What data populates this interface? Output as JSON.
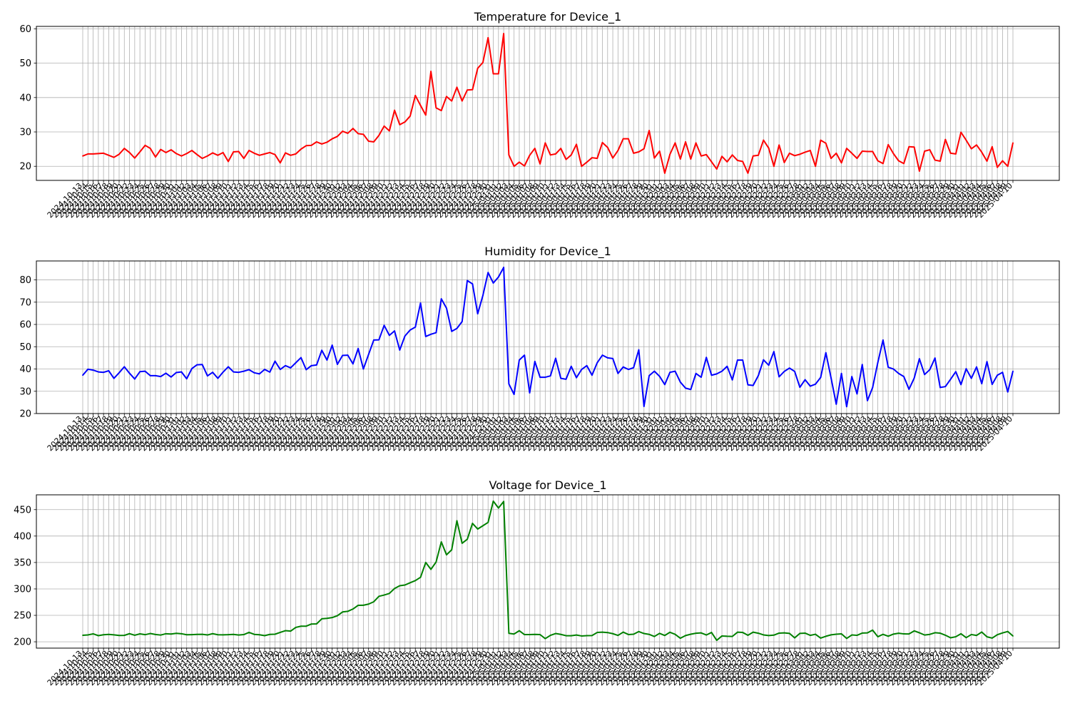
{
  "chart_data": [
    {
      "type": "line",
      "title": "Temperature for Device_1",
      "xlabel": "",
      "ylabel": "",
      "ylim": [
        15.9,
        60.7
      ],
      "yticks": [
        20,
        30,
        40,
        50,
        60
      ],
      "grid": true,
      "color": "#ff0000",
      "x_start": "2024-10-13",
      "x_end": "2025-04-10",
      "x": [
        "2024-10-13",
        "2024-10-14",
        "2024-10-15",
        "2024-10-16",
        "2024-10-17",
        "2024-10-18",
        "2024-10-19",
        "2024-10-20",
        "2024-10-21",
        "2024-10-22",
        "2024-10-23",
        "2024-10-24",
        "2024-10-25",
        "2024-10-26",
        "2024-10-27",
        "2024-10-28",
        "2024-10-29",
        "2024-10-30",
        "2024-10-31",
        "2024-11-01",
        "2024-11-02",
        "2024-11-03",
        "2024-11-04",
        "2024-11-05",
        "2024-11-06",
        "2024-11-07",
        "2024-11-08",
        "2024-11-09",
        "2024-11-10",
        "2024-11-11",
        "2024-11-12",
        "2024-11-13",
        "2024-11-14",
        "2024-11-15",
        "2024-11-16",
        "2024-11-17",
        "2024-11-18",
        "2024-11-19",
        "2024-11-20",
        "2024-11-21",
        "2024-11-22",
        "2024-11-23",
        "2024-11-24",
        "2024-11-25",
        "2024-11-26",
        "2024-11-27",
        "2024-11-28",
        "2024-11-29",
        "2024-11-30",
        "2024-12-01",
        "2024-12-02",
        "2024-12-03",
        "2024-12-04",
        "2024-12-05",
        "2024-12-06",
        "2024-12-07",
        "2024-12-08",
        "2024-12-09",
        "2024-12-10",
        "2024-12-11",
        "2024-12-12",
        "2024-12-13",
        "2024-12-14",
        "2024-12-15",
        "2024-12-16",
        "2024-12-17",
        "2024-12-18",
        "2024-12-19",
        "2024-12-20",
        "2024-12-21",
        "2024-12-22",
        "2024-12-23",
        "2024-12-24",
        "2024-12-25",
        "2024-12-26",
        "2024-12-27",
        "2024-12-28",
        "2024-12-29",
        "2024-12-30",
        "2024-12-31",
        "2025-01-01",
        "2025-01-02",
        "2025-01-03",
        "2025-01-04",
        "2025-01-05",
        "2025-01-06",
        "2025-01-07",
        "2025-01-08",
        "2025-01-09",
        "2025-01-10",
        "2025-01-11",
        "2025-01-12",
        "2025-01-13",
        "2025-01-14",
        "2025-01-15",
        "2025-01-16",
        "2025-01-17",
        "2025-01-18",
        "2025-01-19",
        "2025-01-20",
        "2025-01-21",
        "2025-01-22",
        "2025-01-23",
        "2025-01-24",
        "2025-01-25",
        "2025-01-26",
        "2025-01-27",
        "2025-01-28",
        "2025-01-29",
        "2025-01-30",
        "2025-01-31",
        "2025-02-01",
        "2025-02-02",
        "2025-02-03",
        "2025-02-04",
        "2025-02-05",
        "2025-02-06",
        "2025-02-07",
        "2025-02-08",
        "2025-02-09",
        "2025-02-10",
        "2025-02-11",
        "2025-02-12",
        "2025-02-13",
        "2025-02-14",
        "2025-02-15",
        "2025-02-16",
        "2025-02-17",
        "2025-02-18",
        "2025-02-19",
        "2025-02-20",
        "2025-02-21",
        "2025-02-22",
        "2025-02-23",
        "2025-02-24",
        "2025-02-25",
        "2025-02-26",
        "2025-02-27",
        "2025-02-28",
        "2025-03-01",
        "2025-03-02",
        "2025-03-03",
        "2025-03-04",
        "2025-03-05",
        "2025-03-06",
        "2025-03-07",
        "2025-03-08",
        "2025-03-09",
        "2025-03-10",
        "2025-03-11",
        "2025-03-12",
        "2025-03-13",
        "2025-03-14",
        "2025-03-15",
        "2025-03-16",
        "2025-03-17",
        "2025-03-18",
        "2025-03-19",
        "2025-03-20",
        "2025-03-21",
        "2025-03-22",
        "2025-03-23",
        "2025-03-24",
        "2025-03-25",
        "2025-03-26",
        "2025-03-27",
        "2025-03-28",
        "2025-03-29",
        "2025-03-30",
        "2025-03-31",
        "2025-04-01",
        "2025-04-02",
        "2025-04-03",
        "2025-04-04",
        "2025-04-05",
        "2025-04-06",
        "2025-04-07",
        "2025-04-08",
        "2025-04-09",
        "2025-04-10"
      ],
      "values": [
        23.0,
        23.6,
        23.6,
        23.7,
        23.8,
        23.2,
        22.6,
        23.5,
        25.2,
        24.0,
        22.4,
        24.2,
        26.1,
        25.2,
        22.7,
        24.9,
        24.0,
        24.8,
        23.7,
        23.0,
        23.7,
        24.6,
        23.4,
        22.3,
        23.0,
        23.9,
        23.2,
        24.0,
        21.4,
        24.2,
        24.3,
        22.3,
        24.6,
        23.8,
        23.2,
        23.6,
        24.0,
        23.4,
        21.0,
        23.9,
        23.2,
        23.6,
        25.0,
        26.0,
        26.1,
        27.1,
        26.5,
        27.0,
        28.0,
        28.7,
        30.2,
        29.6,
        31.0,
        29.5,
        29.3,
        27.3,
        27.1,
        29.0,
        31.7,
        30.3,
        36.3,
        32.1,
        32.9,
        34.6,
        40.6,
        37.7,
        34.9,
        47.6,
        37.0,
        36.2,
        40.3,
        39.0,
        43.0,
        39.0,
        42.2,
        42.3,
        48.5,
        50.2,
        57.4,
        46.9,
        46.9,
        58.6,
        23.3,
        20.0,
        21.2,
        20.1,
        23.2,
        25.2,
        20.7,
        26.8,
        23.3,
        23.6,
        25.2,
        22.0,
        23.3,
        26.4,
        20.0,
        21.2,
        22.5,
        22.3,
        26.9,
        25.5,
        22.4,
        24.6,
        28.0,
        28.0,
        23.8,
        24.2,
        25.1,
        30.4,
        22.4,
        24.4,
        18.0,
        23.5,
        26.8,
        22.1,
        27.1,
        22.1,
        26.8,
        23.0,
        23.4,
        21.3,
        19.2,
        22.9,
        21.3,
        23.3,
        21.7,
        21.4,
        18.0,
        23.0,
        23.2,
        27.6,
        25.3,
        20.0,
        26.2,
        21.1,
        23.8,
        23.1,
        23.5,
        24.1,
        24.6,
        20.0,
        27.6,
        26.7,
        22.3,
        23.8,
        21.0,
        25.2,
        23.8,
        22.3,
        24.4,
        24.3,
        24.3,
        21.6,
        20.8,
        26.3,
        23.7,
        21.6,
        20.8,
        25.7,
        25.6,
        18.6,
        24.4,
        24.8,
        21.8,
        21.5,
        27.8,
        23.8,
        23.6,
        29.9,
        27.6,
        25.1,
        26.2,
        24.1,
        21.5,
        25.7,
        19.7,
        21.6,
        20.0,
        26.8
      ]
    },
    {
      "type": "line",
      "title": "Humidity for Device_1",
      "xlabel": "",
      "ylabel": "",
      "ylim": [
        20,
        88.5
      ],
      "yticks": [
        20,
        30,
        40,
        50,
        60,
        70,
        80
      ],
      "grid": true,
      "color": "#0000ff",
      "x_start": "2024-10-13",
      "x_end": "2025-04-10",
      "values": [
        37.2,
        39.9,
        39.5,
        38.7,
        38.5,
        39.2,
        35.8,
        38.3,
        41.0,
        38.1,
        35.5,
        38.8,
        39.0,
        37.0,
        37.0,
        36.6,
        38.1,
        36.4,
        38.4,
        38.7,
        35.6,
        40.2,
        41.9,
        42.0,
        36.9,
        38.5,
        35.8,
        38.6,
        41.0,
        38.7,
        38.5,
        39.0,
        39.7,
        38.3,
        37.8,
        39.8,
        38.6,
        43.5,
        39.8,
        41.5,
        40.5,
        42.8,
        45.1,
        39.7,
        41.5,
        41.8,
        48.4,
        44.0,
        50.7,
        42.1,
        46.1,
        46.2,
        42.3,
        49.2,
        40.0,
        46.5,
        53.0,
        53.1,
        59.6,
        55.1,
        57.1,
        48.5,
        54.8,
        57.5,
        58.8,
        69.6,
        54.6,
        55.6,
        56.3,
        71.5,
        67.3,
        56.9,
        58.2,
        61.3,
        79.7,
        78.2,
        64.8,
        73.0,
        83.3,
        78.6,
        81.3,
        85.6,
        33.3,
        28.6,
        44.0,
        46.2,
        29.3,
        43.4,
        36.3,
        36.3,
        36.9,
        44.8,
        35.8,
        35.4,
        41.2,
        36.1,
        39.8,
        41.5,
        37.2,
        42.8,
        46.2,
        45.0,
        44.7,
        38.0,
        40.9,
        39.8,
        40.6,
        48.6,
        23.2,
        37.0,
        39.0,
        36.7,
        33.0,
        38.5,
        39.0,
        34.1,
        31.4,
        30.8,
        38.0,
        36.3,
        45.2,
        37.2,
        37.8,
        39.0,
        41.2,
        35.1,
        44.0,
        44.0,
        32.9,
        32.6,
        37.0,
        44.1,
        41.7,
        47.8,
        36.5,
        38.9,
        40.4,
        38.9,
        31.8,
        35.2,
        32.3,
        33.2,
        36.2,
        47.3,
        36.0,
        24.2,
        38.0,
        23.1,
        36.6,
        28.8,
        42.0,
        25.8,
        31.7,
        42.9,
        53.0,
        40.8,
        40.0,
        38.0,
        36.6,
        30.9,
        35.9,
        44.6,
        37.5,
        39.7,
        44.9,
        31.7,
        32.1,
        35.4,
        38.8,
        33.0,
        40.1,
        35.8,
        40.9,
        33.4,
        43.3,
        33.1,
        37.2,
        38.5,
        29.7,
        39.0
      ]
    },
    {
      "type": "line",
      "title": "Voltage for Device_1",
      "xlabel": "",
      "ylabel": "",
      "ylim": [
        188,
        478
      ],
      "yticks": [
        200,
        250,
        300,
        350,
        400,
        450
      ],
      "grid": true,
      "color": "#008000",
      "x_start": "2024-10-13",
      "x_end": "2025-04-10",
      "values": [
        212.3,
        213.0,
        215.0,
        211.6,
        213.3,
        213.9,
        213.1,
        211.9,
        212.1,
        215.3,
        212.4,
        215.0,
        213.4,
        215.6,
        213.8,
        212.7,
        215.2,
        214.7,
        216.0,
        215.2,
        213.3,
        213.5,
        213.9,
        214.1,
        212.9,
        215.3,
        213.3,
        213.2,
        213.4,
        214.0,
        212.8,
        213.6,
        217.8,
        214.0,
        213.3,
        211.6,
        214.0,
        214.3,
        217.7,
        221.0,
        220.2,
        227.2,
        229.5,
        229.5,
        233.6,
        233.9,
        243.4,
        244.3,
        245.8,
        249.3,
        256.4,
        257.6,
        262.0,
        269.0,
        269.1,
        271.3,
        275.7,
        286.0,
        288.4,
        291.4,
        300.8,
        306.0,
        307.4,
        311.7,
        315.7,
        322.0,
        350.0,
        337.0,
        351.0,
        389.0,
        364.5,
        374.0,
        429.0,
        386.4,
        394.0,
        424.0,
        413.3,
        419.5,
        425.8,
        466.0,
        453.0,
        465.4,
        216.0,
        214.7,
        220.9,
        213.6,
        213.7,
        214.0,
        213.6,
        206.0,
        212.2,
        215.6,
        214.0,
        211.5,
        211.4,
        212.8,
        211.0,
        211.6,
        211.8,
        217.6,
        218.1,
        217.4,
        215.3,
        212.0,
        218.3,
        213.7,
        214.3,
        219.3,
        215.6,
        214.0,
        210.0,
        215.9,
        211.9,
        218.0,
        214.1,
        206.7,
        211.8,
        214.3,
        216.1,
        216.8,
        212.8,
        217.6,
        202.7,
        211.0,
        210.4,
        210.1,
        218.1,
        217.6,
        212.3,
        218.2,
        216.2,
        213.0,
        211.8,
        212.6,
        216.4,
        216.9,
        215.9,
        207.4,
        215.9,
        216.4,
        212.1,
        214.2,
        207.0,
        210.4,
        213.1,
        214.3,
        215.0,
        206.3,
        212.9,
        212.2,
        216.5,
        216.8,
        222.0,
        209.5,
        214.1,
        210.5,
        214.5,
        216.2,
        214.9,
        214.8,
        220.6,
        217.0,
        212.8,
        214.0,
        217.1,
        216.3,
        212.4,
        207.5,
        209.5,
        215.2,
        207.8,
        213.7,
        212.0,
        218.4,
        209.4,
        207.0,
        213.4,
        216.7,
        219.5,
        211.0
      ]
    }
  ]
}
